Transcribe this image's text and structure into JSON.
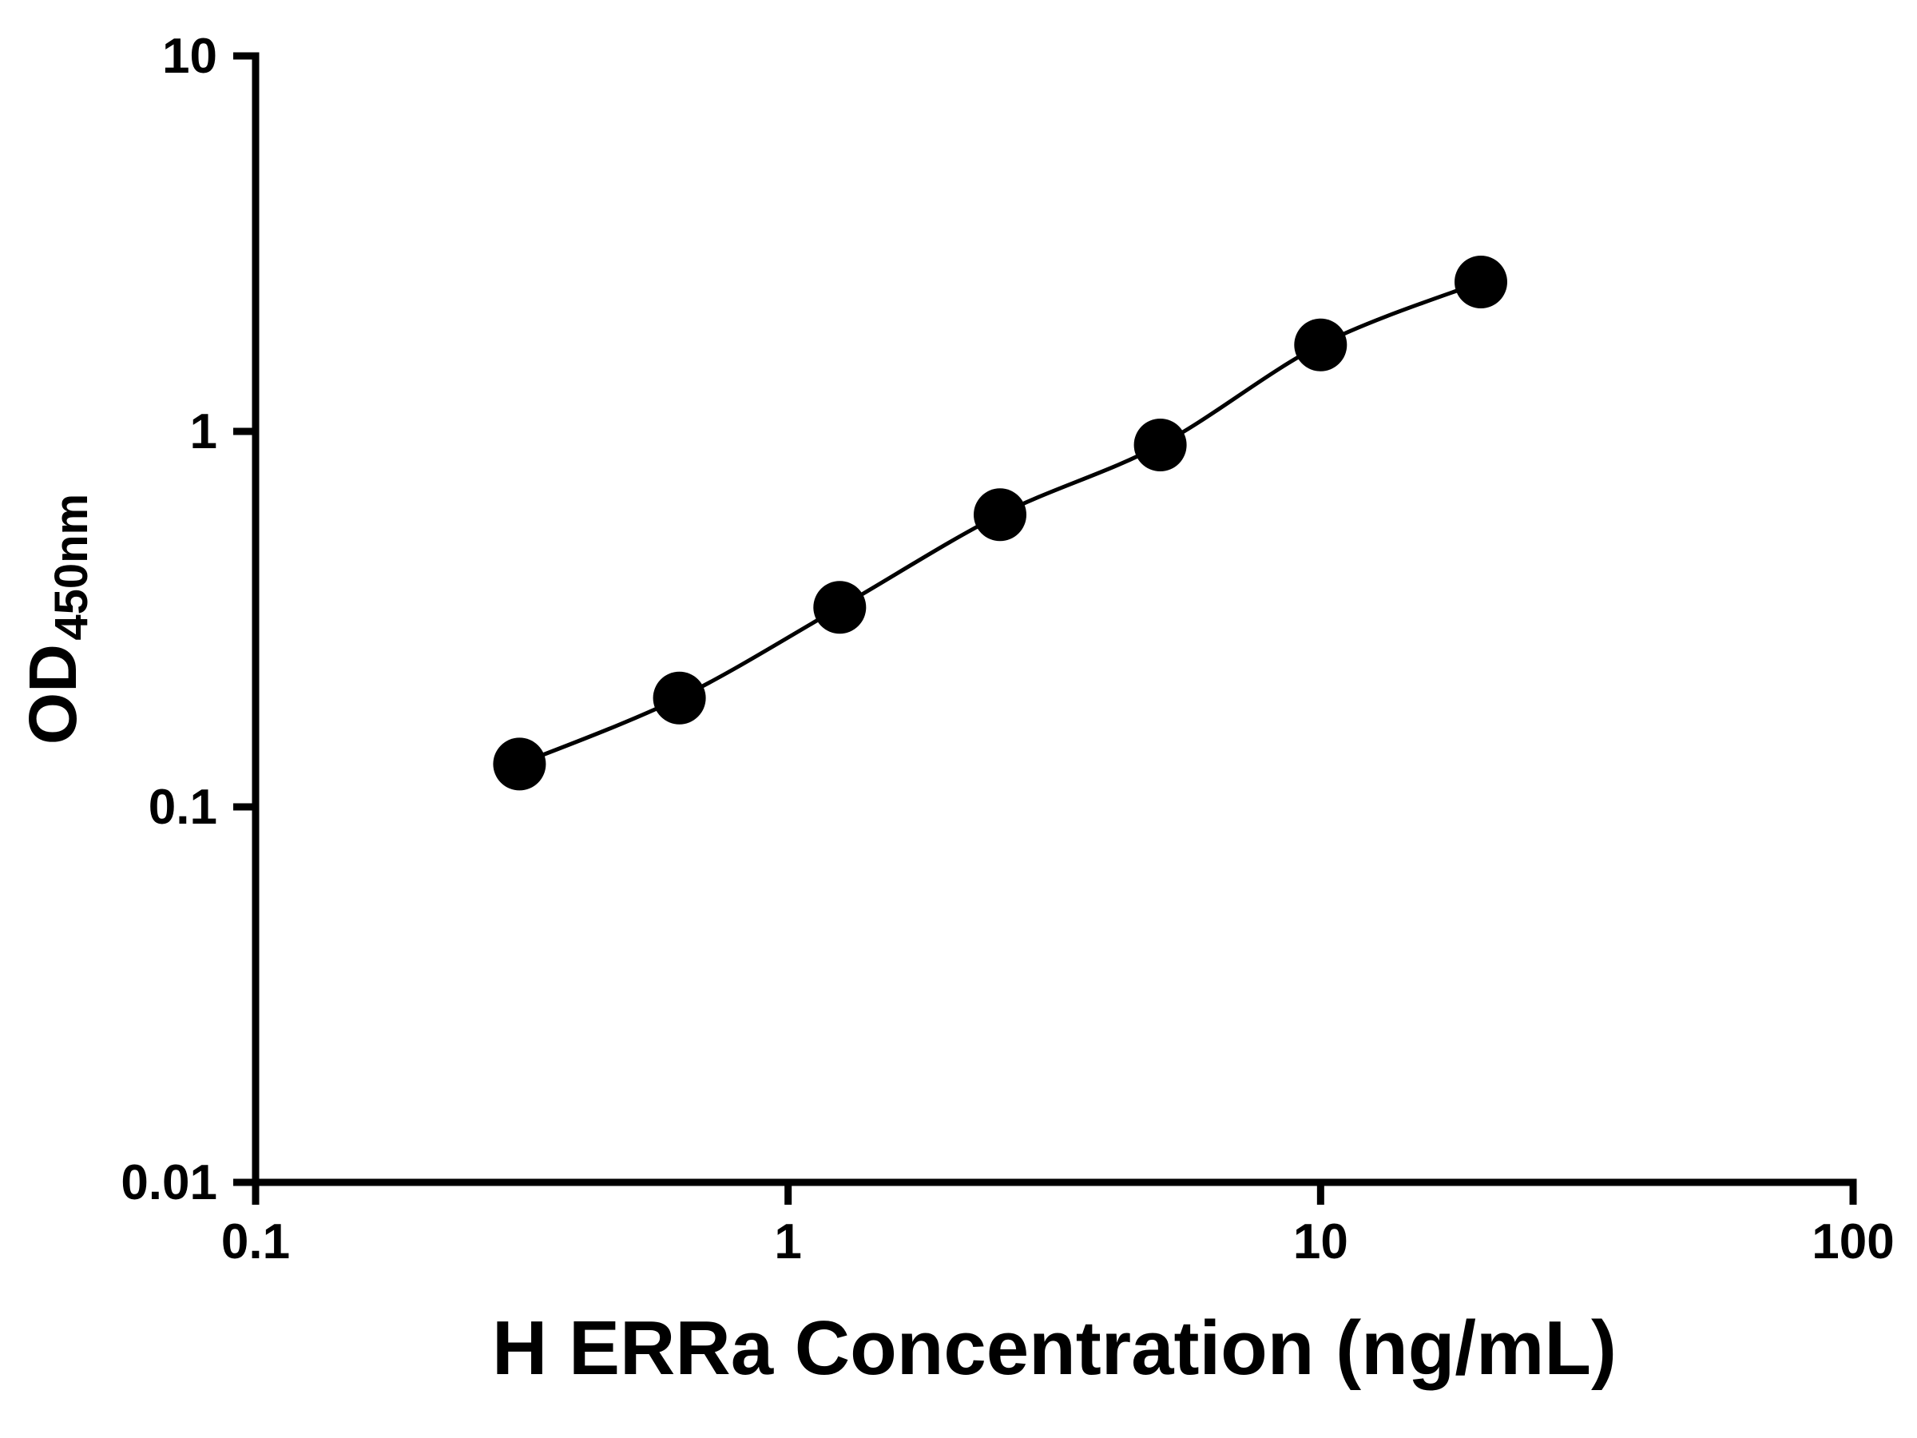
{
  "chart_data": {
    "type": "scatter",
    "title": "",
    "xlabel": "H ERRa Concentration (ng/mL)",
    "ylabel_main": "OD",
    "ylabel_sub": "450nm",
    "x_scale": "log",
    "y_scale": "log",
    "xlim": [
      0.1,
      100
    ],
    "ylim": [
      0.01,
      10
    ],
    "x_ticks": [
      0.1,
      1,
      10,
      100
    ],
    "x_tick_labels": [
      "0.1",
      "1",
      "10",
      "100"
    ],
    "y_ticks": [
      0.01,
      0.1,
      1,
      10
    ],
    "y_tick_labels": [
      "0.01",
      "0.1",
      "1",
      "10"
    ],
    "grid": false,
    "legend": "none",
    "marker": "filled-circle",
    "marker_color": "#000000",
    "line_color": "#000000",
    "background_color": "#ffffff",
    "x": [
      0.313,
      0.625,
      1.25,
      2.5,
      5,
      10,
      20
    ],
    "y": [
      0.13,
      0.195,
      0.34,
      0.6,
      0.92,
      1.7,
      2.5
    ]
  }
}
